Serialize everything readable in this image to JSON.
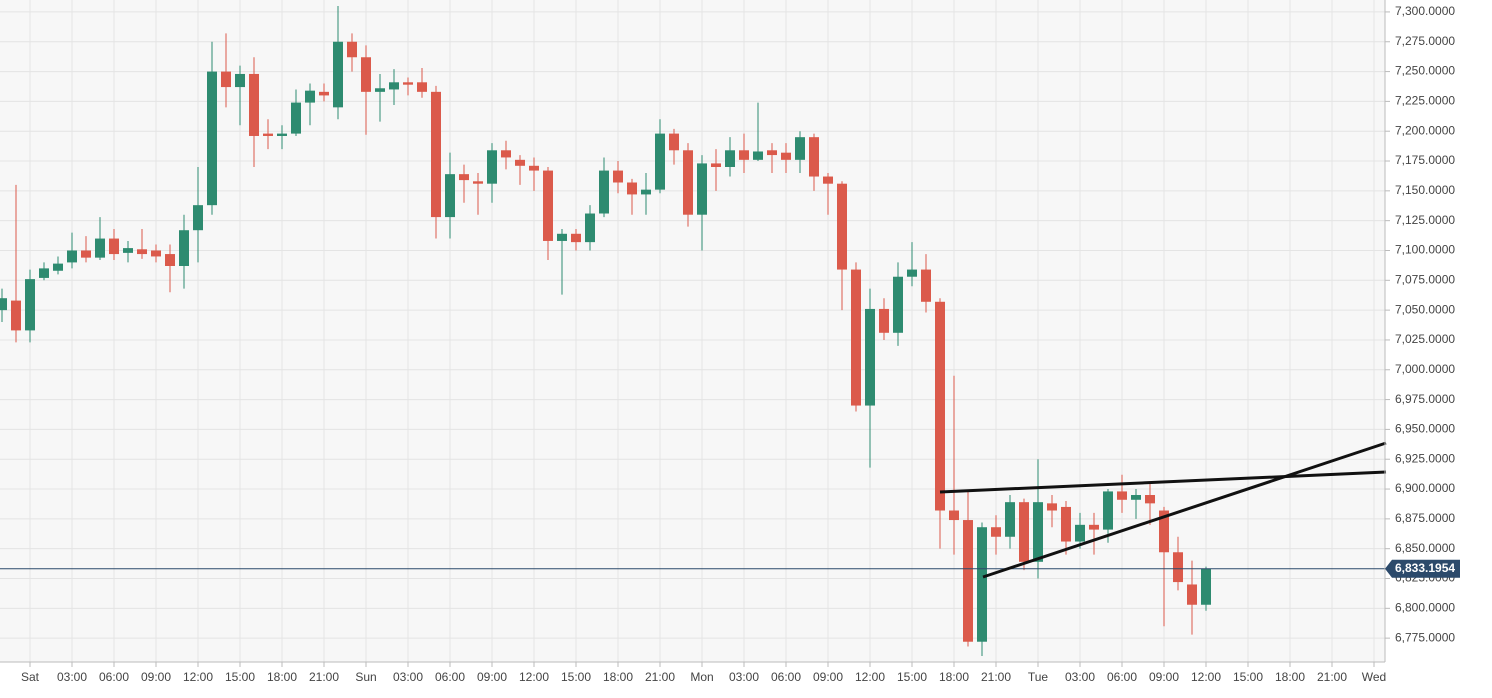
{
  "chart_data": {
    "type": "candlestick",
    "categories": [
      null,
      null,
      "Sat",
      null,
      null,
      "03:00",
      null,
      null,
      "06:00",
      null,
      null,
      "09:00",
      null,
      null,
      "12:00",
      null,
      null,
      "15:00",
      null,
      null,
      "18:00",
      null,
      null,
      "21:00",
      null,
      null,
      "Sun",
      null,
      null,
      "03:00",
      null,
      null,
      "06:00",
      null,
      null,
      "09:00",
      null,
      null,
      "12:00",
      null,
      null,
      "15:00",
      null,
      null,
      "18:00",
      null,
      null,
      "21:00",
      null,
      null,
      "Mon",
      null,
      null,
      "03:00",
      null,
      null,
      "06:00",
      null,
      null,
      "09:00",
      null,
      null,
      "12:00",
      null,
      null,
      "15:00",
      null,
      null,
      "18:00",
      null,
      null,
      "21:00",
      null,
      null,
      "Tue",
      null,
      null,
      "03:00",
      null,
      null,
      "06:00",
      null,
      null,
      "09:00",
      null,
      null,
      "12:00",
      null,
      null,
      "15:00",
      null,
      null,
      "18:00",
      null,
      null,
      "21:00",
      null,
      null,
      "Wed"
    ],
    "open": [
      7050,
      7058,
      7033,
      7077,
      7083,
      7090,
      7100,
      7094,
      7110,
      7098,
      7101,
      7100,
      7097,
      7087,
      7117,
      7138,
      7250,
      7237,
      7248,
      7198,
      7196,
      7198,
      7224,
      7233,
      7220,
      7275,
      7262,
      7233,
      7235,
      7241,
      7241,
      7233,
      7128,
      7164,
      7158,
      7156,
      7184,
      7176,
      7171,
      7167,
      7108,
      7114,
      7107,
      7131,
      7167,
      7157,
      7147,
      7151,
      7198,
      7184,
      7130,
      7173,
      7170,
      7184,
      7176,
      7184,
      7182,
      7176,
      7195,
      7162,
      7156,
      7084,
      6970,
      7051,
      7031,
      7078,
      7084,
      7057,
      6882,
      6874,
      6772,
      6868,
      6860,
      6889,
      6839,
      6888,
      6885,
      6856,
      6870,
      6866,
      6898,
      6891,
      6895,
      6882,
      6847,
      6820,
      6803,
      null,
      null,
      null,
      null,
      null,
      null,
      null,
      null,
      null,
      null,
      null,
      null
    ],
    "high": [
      7068,
      7155,
      7084,
      7090,
      7095,
      7115,
      7112,
      7128,
      7118,
      7108,
      7118,
      7105,
      7105,
      7130,
      7170,
      7275,
      7282,
      7255,
      7262,
      7210,
      7205,
      7235,
      7240,
      7240,
      7305,
      7282,
      7272,
      7248,
      7252,
      7245,
      7253,
      7238,
      7182,
      7172,
      7165,
      7190,
      7192,
      7180,
      7178,
      7170,
      7118,
      7118,
      7138,
      7178,
      7175,
      7160,
      7165,
      7210,
      7202,
      7190,
      7180,
      7185,
      7195,
      7198,
      7224,
      7190,
      7190,
      7200,
      7198,
      7165,
      7158,
      7090,
      7068,
      7060,
      7090,
      7107,
      7097,
      7060,
      6995,
      6898,
      6872,
      6878,
      6895,
      6892,
      6925,
      6895,
      6890,
      6880,
      6880,
      6900,
      6912,
      6900,
      6905,
      6885,
      6860,
      6840,
      6835,
      null,
      null,
      null,
      null,
      null,
      null,
      null,
      null,
      null,
      null,
      null,
      null
    ],
    "low": [
      7040,
      7023,
      7023,
      7075,
      7080,
      7085,
      7090,
      7092,
      7092,
      7090,
      7093,
      7090,
      7065,
      7068,
      7090,
      7130,
      7220,
      7205,
      7170,
      7185,
      7185,
      7196,
      7205,
      7225,
      7210,
      7250,
      7197,
      7208,
      7222,
      7230,
      7228,
      7110,
      7110,
      7140,
      7130,
      7140,
      7168,
      7155,
      7150,
      7092,
      7063,
      7100,
      7100,
      7128,
      7148,
      7130,
      7130,
      7148,
      7172,
      7120,
      7100,
      7150,
      7162,
      7165,
      7175,
      7165,
      7165,
      7165,
      7150,
      7130,
      7050,
      6965,
      6918,
      7025,
      7020,
      7070,
      7048,
      6850,
      6845,
      6768,
      6760,
      6845,
      6850,
      6832,
      6825,
      6868,
      6845,
      6850,
      6845,
      6855,
      6880,
      6875,
      6870,
      6785,
      6815,
      6778,
      6798,
      null,
      null,
      null,
      null,
      null,
      null,
      null,
      null,
      null,
      null,
      null,
      null
    ],
    "close": [
      7060,
      7033,
      7076,
      7085,
      7089,
      7100,
      7094,
      7110,
      7097,
      7102,
      7097,
      7095,
      7087,
      7117,
      7138,
      7250,
      7237,
      7248,
      7196,
      7196,
      7198,
      7224,
      7234,
      7230,
      7275,
      7262,
      7233,
      7236,
      7241,
      7239,
      7233,
      7128,
      7164,
      7159,
      7156,
      7184,
      7178,
      7171,
      7167,
      7108,
      7114,
      7107,
      7131,
      7167,
      7157,
      7147,
      7151,
      7198,
      7184,
      7130,
      7173,
      7170,
      7184,
      7176,
      7183,
      7180,
      7176,
      7195,
      7162,
      7156,
      7084,
      6970,
      7051,
      7031,
      7078,
      7084,
      7057,
      6882,
      6874,
      6772,
      6868,
      6860,
      6889,
      6839,
      6889,
      6882,
      6856,
      6870,
      6866,
      6898,
      6891,
      6895,
      6888,
      6847,
      6822,
      6803,
      6833.1954,
      null,
      null,
      null,
      null,
      null,
      null,
      null,
      null,
      null,
      null,
      null,
      null
    ],
    "up_color": "#2e8b70",
    "down_color": "#db5a4b",
    "ylim": [
      6755,
      7310
    ],
    "yticks": [
      {
        "value": 6775,
        "label": "6,775.0000"
      },
      {
        "value": 6800,
        "label": "6,800.0000"
      },
      {
        "value": 6825,
        "label": "6,825.0000"
      },
      {
        "value": 6850,
        "label": "6,850.0000"
      },
      {
        "value": 6875,
        "label": "6,875.0000"
      },
      {
        "value": 6900,
        "label": "6,900.0000"
      },
      {
        "value": 6925,
        "label": "6,925.0000"
      },
      {
        "value": 6950,
        "label": "6,950.0000"
      },
      {
        "value": 6975,
        "label": "6,975.0000"
      },
      {
        "value": 7000,
        "label": "7,000.0000"
      },
      {
        "value": 7025,
        "label": "7,025.0000"
      },
      {
        "value": 7050,
        "label": "7,050.0000"
      },
      {
        "value": 7075,
        "label": "7,075.0000"
      },
      {
        "value": 7100,
        "label": "7,100.0000"
      },
      {
        "value": 7125,
        "label": "7,125.0000"
      },
      {
        "value": 7150,
        "label": "7,150.0000"
      },
      {
        "value": 7175,
        "label": "7,175.0000"
      },
      {
        "value": 7200,
        "label": "7,200.0000"
      },
      {
        "value": 7225,
        "label": "7,225.0000"
      },
      {
        "value": 7250,
        "label": "7,250.0000"
      },
      {
        "value": 7275,
        "label": "7,275.0000"
      },
      {
        "value": 7300,
        "label": "7,300.0000"
      }
    ],
    "last_price": {
      "value": 6833.1954,
      "label": "6,833.1954"
    },
    "grid": true
  }
}
